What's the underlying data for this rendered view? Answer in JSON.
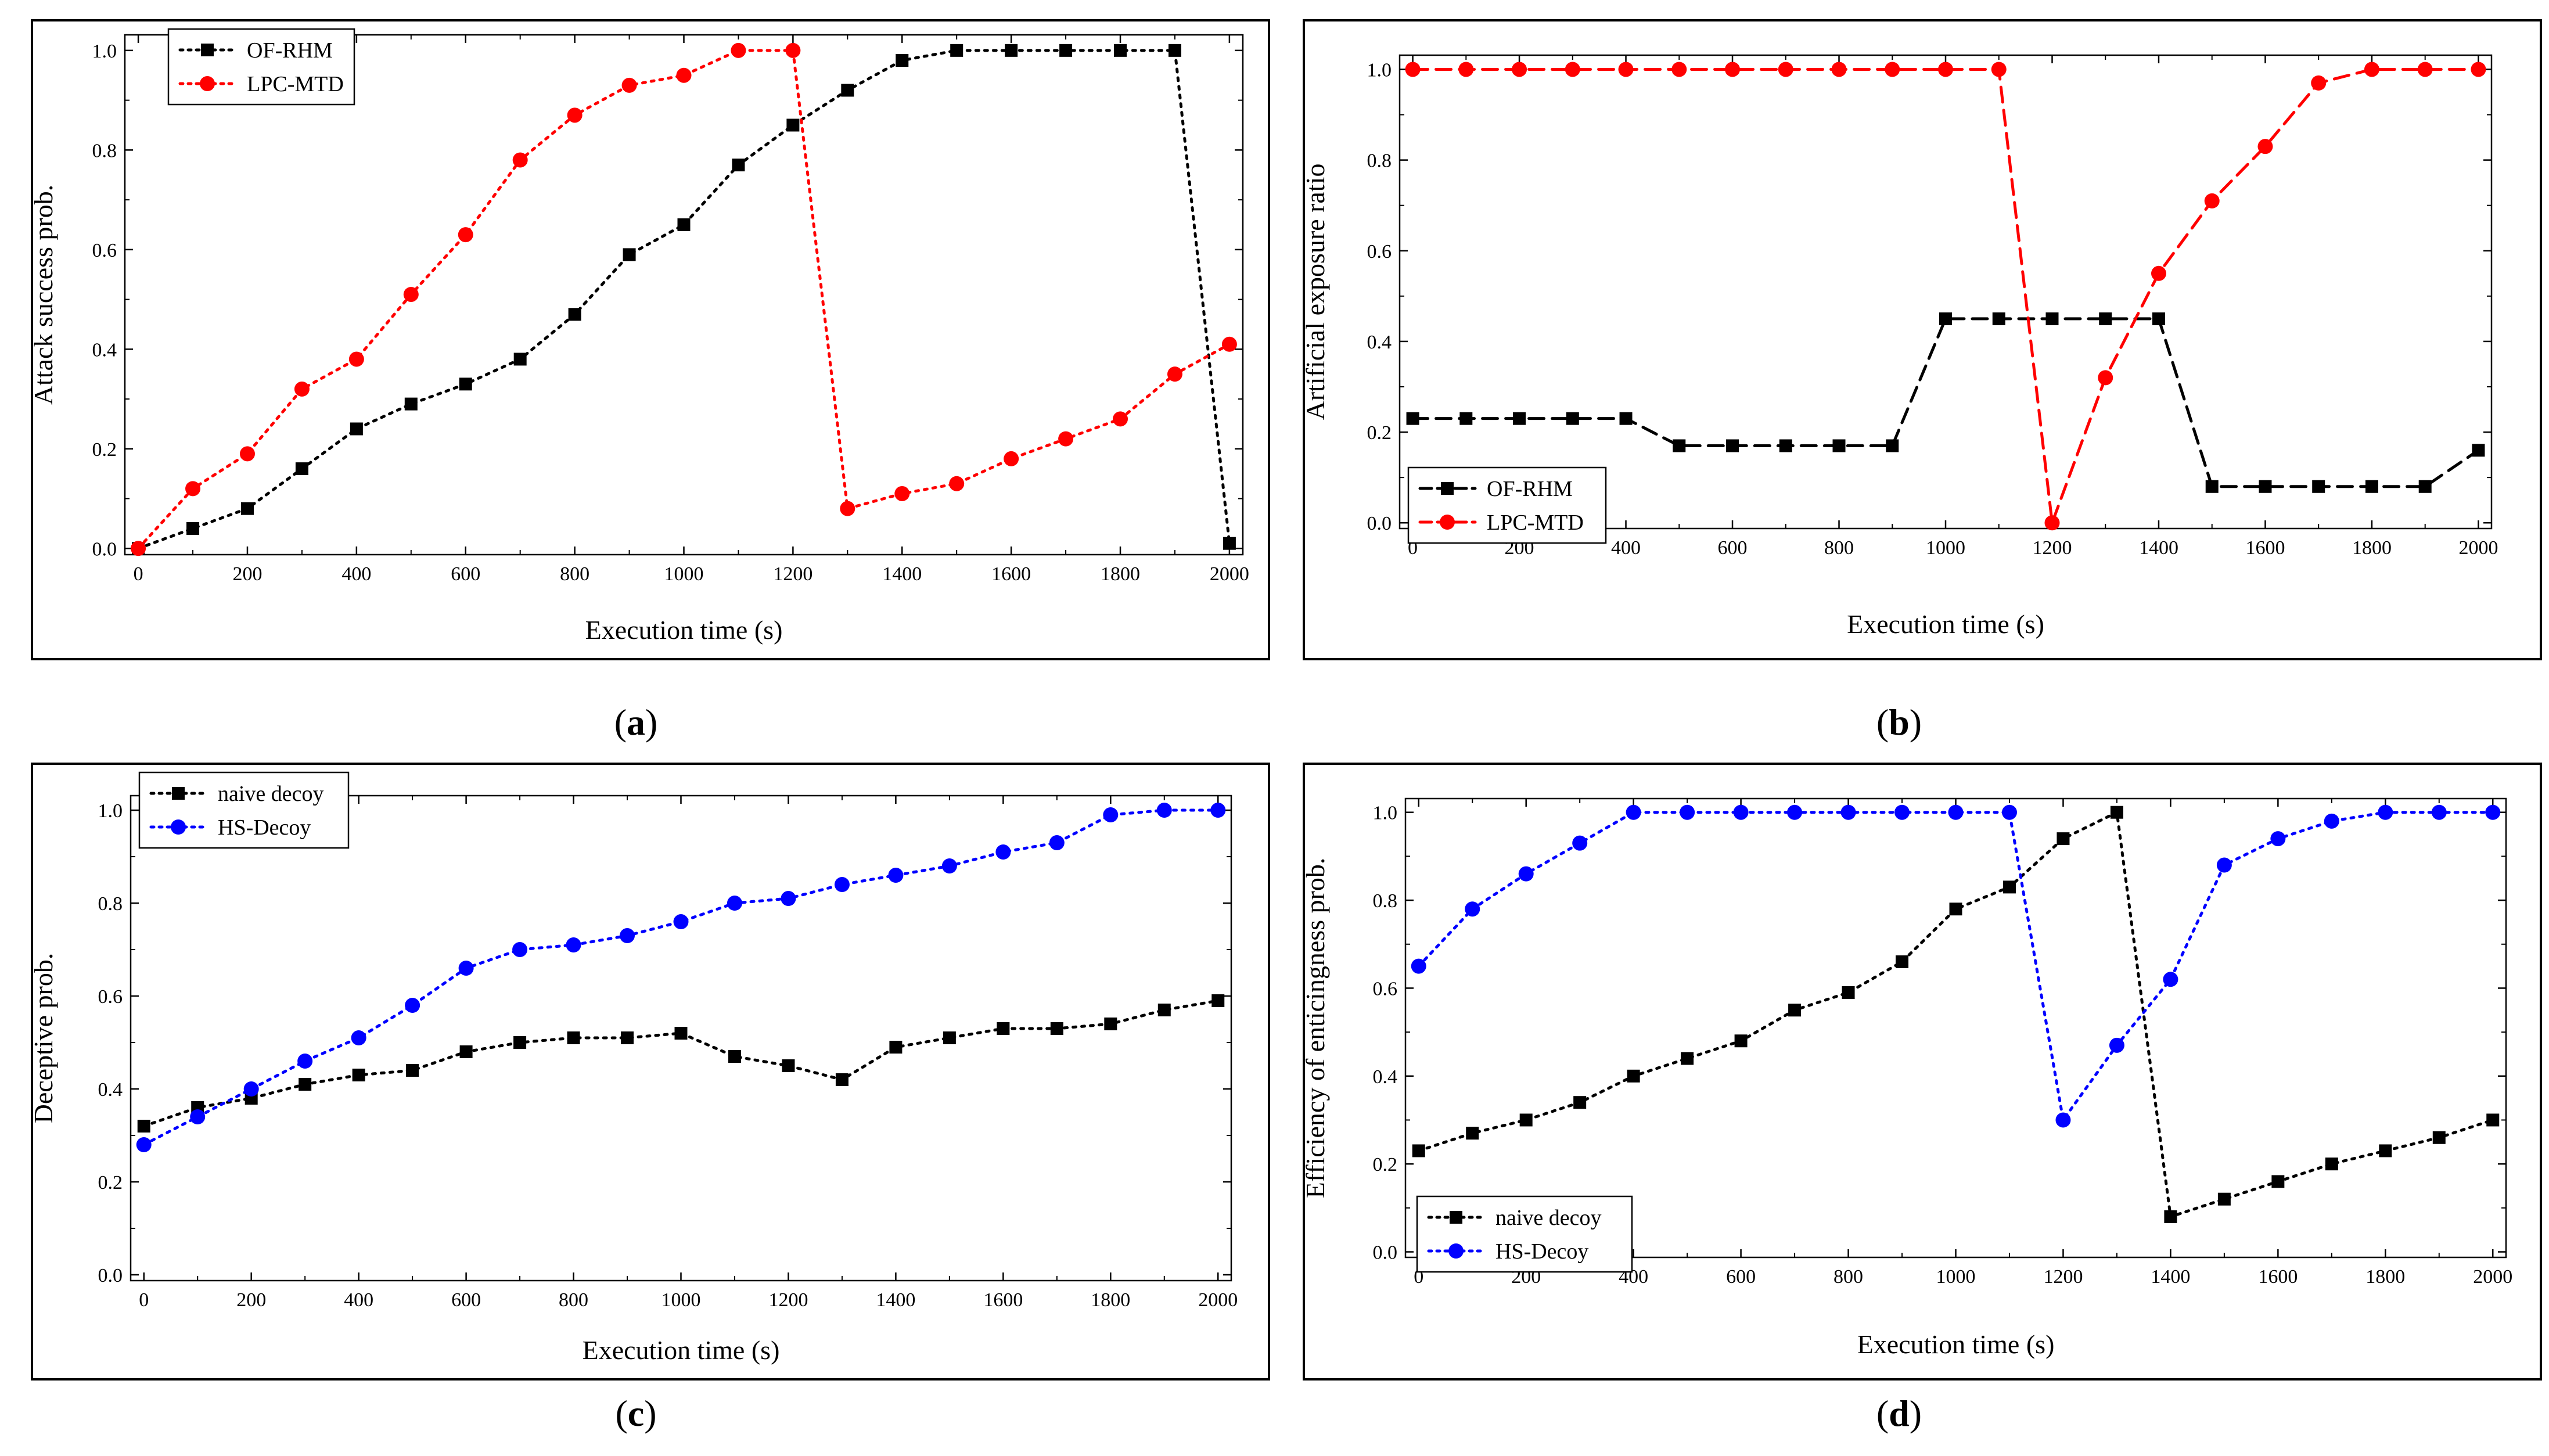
{
  "figure": {
    "background": "#ffffff"
  },
  "chart_data": [
    {
      "type": "line",
      "caption": {
        "open": "(",
        "letter": "a",
        "close": ")"
      },
      "xlabel": "Execution time (s)",
      "ylabel": "Attack success prob.",
      "xlim": [
        0,
        2000
      ],
      "ylim": [
        0,
        1.0
      ],
      "xticks": [
        0,
        200,
        400,
        600,
        800,
        1000,
        1200,
        1400,
        1600,
        1800,
        2000
      ],
      "yticks": [
        0.0,
        0.2,
        0.4,
        0.6,
        0.8,
        1.0
      ],
      "x": [
        0,
        100,
        200,
        300,
        400,
        500,
        600,
        700,
        800,
        900,
        1000,
        1100,
        1200,
        1300,
        1400,
        1500,
        1600,
        1700,
        1800,
        1900,
        2000
      ],
      "legend": "top-left",
      "series": [
        {
          "name": "OF-RHM",
          "color": "#000000",
          "marker": "square",
          "dash": "dot",
          "values": [
            0,
            0.04,
            0.08,
            0.16,
            0.24,
            0.29,
            0.33,
            0.38,
            0.47,
            0.59,
            0.65,
            0.77,
            0.85,
            0.92,
            0.98,
            1.0,
            1.0,
            1.0,
            1.0,
            1.0,
            0.01
          ]
        },
        {
          "name": "LPC-MTD",
          "color": "#ff0000",
          "marker": "circle",
          "dash": "dot",
          "values": [
            0,
            0.12,
            0.19,
            0.32,
            0.38,
            0.51,
            0.63,
            0.78,
            0.87,
            0.93,
            0.95,
            1.0,
            1.0,
            0.08,
            0.11,
            0.13,
            0.18,
            0.22,
            0.26,
            0.35,
            0.41
          ]
        }
      ]
    },
    {
      "type": "line",
      "caption": {
        "open": "(",
        "letter": "b",
        "close": ")"
      },
      "xlabel": "Execution time (s)",
      "ylabel": "Artificial exposure ratio",
      "xlim": [
        0,
        2000
      ],
      "ylim": [
        0,
        1.0
      ],
      "xticks": [
        0,
        200,
        400,
        600,
        800,
        1000,
        1200,
        1400,
        1600,
        1800,
        2000
      ],
      "yticks": [
        0.0,
        0.2,
        0.4,
        0.6,
        0.8,
        1.0
      ],
      "x": [
        0,
        100,
        200,
        300,
        400,
        500,
        600,
        700,
        800,
        900,
        1000,
        1100,
        1200,
        1300,
        1400,
        1500,
        1600,
        1700,
        1800,
        1900,
        2000
      ],
      "legend": "bottom-left",
      "series": [
        {
          "name": "OF-RHM",
          "color": "#000000",
          "marker": "square",
          "dash": "dash",
          "values": [
            0.23,
            0.23,
            0.23,
            0.23,
            0.23,
            0.17,
            0.17,
            0.17,
            0.17,
            0.17,
            0.45,
            0.45,
            0.45,
            0.45,
            0.45,
            0.08,
            0.08,
            0.08,
            0.08,
            0.08,
            0.16
          ]
        },
        {
          "name": "LPC-MTD",
          "color": "#ff0000",
          "marker": "circle",
          "dash": "dash",
          "values": [
            1.0,
            1.0,
            1.0,
            1.0,
            1.0,
            1.0,
            1.0,
            1.0,
            1.0,
            1.0,
            1.0,
            1.0,
            0.0,
            0.32,
            0.55,
            0.71,
            0.83,
            0.97,
            1.0,
            1.0,
            1.0
          ]
        }
      ]
    },
    {
      "type": "line",
      "caption": {
        "open": "(",
        "letter": "c",
        "close": ")"
      },
      "xlabel": "Execution time (s)",
      "ylabel": "Deceptive prob.",
      "xlim": [
        0,
        2000
      ],
      "ylim": [
        0,
        1.0
      ],
      "xticks": [
        0,
        200,
        400,
        600,
        800,
        1000,
        1200,
        1400,
        1600,
        1800,
        2000
      ],
      "yticks": [
        0.0,
        0.2,
        0.4,
        0.6,
        0.8,
        1.0
      ],
      "x": [
        0,
        100,
        200,
        300,
        400,
        500,
        600,
        700,
        800,
        900,
        1000,
        1100,
        1200,
        1300,
        1400,
        1500,
        1600,
        1700,
        1800,
        1900,
        2000
      ],
      "legend": "top-left",
      "series": [
        {
          "name": "naive decoy",
          "color": "#000000",
          "marker": "square",
          "dash": "dot",
          "values": [
            0.32,
            0.36,
            0.38,
            0.41,
            0.43,
            0.44,
            0.48,
            0.5,
            0.51,
            0.51,
            0.52,
            0.47,
            0.45,
            0.42,
            0.49,
            0.51,
            0.53,
            0.53,
            0.54,
            0.57,
            0.59
          ]
        },
        {
          "name": "HS-Decoy",
          "color": "#0000ff",
          "marker": "circle",
          "dash": "dot",
          "values": [
            0.28,
            0.34,
            0.4,
            0.46,
            0.51,
            0.58,
            0.66,
            0.7,
            0.71,
            0.73,
            0.76,
            0.8,
            0.81,
            0.84,
            0.86,
            0.88,
            0.91,
            0.93,
            0.99,
            1.0,
            1.0
          ]
        }
      ]
    },
    {
      "type": "line",
      "caption": {
        "open": "(",
        "letter": "d",
        "close": ")"
      },
      "xlabel": "Execution time (s)",
      "ylabel": "Efficiency of enticingness prob.",
      "xlim": [
        0,
        2000
      ],
      "ylim": [
        0,
        1.0
      ],
      "xticks": [
        0,
        200,
        400,
        600,
        800,
        1000,
        1200,
        1400,
        1600,
        1800,
        2000
      ],
      "yticks": [
        0.0,
        0.2,
        0.4,
        0.6,
        0.8,
        1.0
      ],
      "x": [
        0,
        100,
        200,
        300,
        400,
        500,
        600,
        700,
        800,
        900,
        1000,
        1100,
        1200,
        1300,
        1400,
        1500,
        1600,
        1700,
        1800,
        1900,
        2000
      ],
      "legend": "bottom-left",
      "series": [
        {
          "name": "naive decoy",
          "color": "#000000",
          "marker": "square",
          "dash": "dot",
          "values": [
            0.23,
            0.27,
            0.3,
            0.34,
            0.4,
            0.44,
            0.48,
            0.55,
            0.59,
            0.66,
            0.78,
            0.83,
            0.94,
            1.0,
            0.08,
            0.12,
            0.16,
            0.2,
            0.23,
            0.26,
            0.3
          ]
        },
        {
          "name": "HS-Decoy",
          "color": "#0000ff",
          "marker": "circle",
          "dash": "dot",
          "values": [
            0.65,
            0.78,
            0.86,
            0.93,
            1.0,
            1.0,
            1.0,
            1.0,
            1.0,
            1.0,
            1.0,
            1.0,
            0.3,
            0.47,
            0.62,
            0.88,
            0.94,
            0.98,
            1.0,
            1.0,
            1.0
          ]
        }
      ]
    }
  ]
}
